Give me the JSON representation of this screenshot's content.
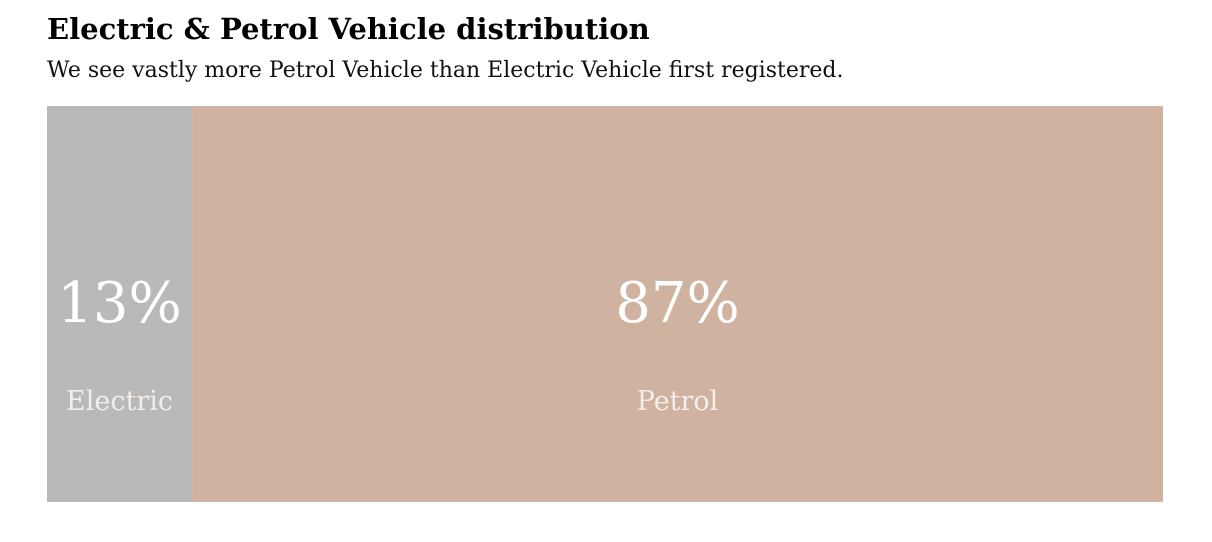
{
  "chart_data": {
    "type": "bar",
    "orientation": "horizontal-stacked-100",
    "title": "Electric & Petrol Vehicle distribution",
    "subtitle": "We see vastly more Petrol Vehicle than Electric Vehicle first registered.",
    "categories": [
      "Electric",
      "Petrol"
    ],
    "values": [
      13,
      87
    ],
    "value_labels": [
      "13%",
      "87%"
    ],
    "colors": [
      "#b9b9b9",
      "#cfb3a0"
    ],
    "grid": false,
    "legend": "none"
  }
}
